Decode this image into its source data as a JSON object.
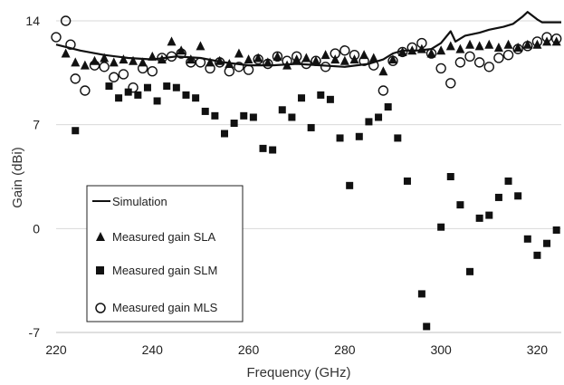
{
  "chart_data": {
    "type": "scatter",
    "title": "",
    "xlabel": "Frequency (GHz)",
    "ylabel": "Gain (dBi)",
    "xlim": [
      220,
      325
    ],
    "ylim": [
      -7,
      14
    ],
    "x_ticks": [
      220,
      240,
      260,
      280,
      300,
      320
    ],
    "y_ticks": [
      -7,
      0,
      7,
      14
    ],
    "grid": "horizontal",
    "legend_position": "bottom-left",
    "series": [
      {
        "name": "Simulation",
        "kind": "line",
        "color": "#111111",
        "x": [
          220,
          225,
          230,
          235,
          240,
          245,
          250,
          255,
          260,
          265,
          270,
          275,
          280,
          285,
          288,
          290,
          292,
          295,
          298,
          300,
          302,
          303,
          305,
          308,
          310,
          313,
          315,
          317,
          318,
          320,
          321,
          325
        ],
        "y": [
          12.4,
          12.0,
          11.7,
          11.5,
          11.4,
          11.6,
          11.5,
          11.2,
          11.0,
          11.0,
          11.1,
          11.0,
          10.9,
          11.1,
          11.4,
          11.8,
          12.0,
          12.0,
          12.1,
          12.5,
          13.3,
          12.6,
          13.0,
          13.2,
          13.4,
          13.6,
          13.8,
          14.3,
          14.6,
          14.1,
          13.9,
          13.9
        ]
      },
      {
        "name": "Measured gain SLA",
        "kind": "triangle",
        "color": "#111111",
        "x": [
          222,
          224,
          226,
          228,
          230,
          232,
          234,
          236,
          238,
          240,
          242,
          244,
          246,
          248,
          250,
          252,
          254,
          256,
          258,
          260,
          262,
          264,
          266,
          268,
          270,
          272,
          274,
          276,
          278,
          280,
          282,
          284,
          286,
          288,
          290,
          292,
          294,
          296,
          298,
          300,
          302,
          304,
          306,
          308,
          310,
          312,
          314,
          316,
          318,
          320,
          322,
          324
        ],
        "y": [
          11.8,
          11.2,
          11.0,
          11.3,
          11.5,
          11.2,
          11.4,
          11.3,
          11.2,
          11.6,
          11.4,
          12.6,
          12.0,
          11.4,
          12.3,
          11.2,
          11.3,
          11.1,
          11.8,
          11.4,
          11.5,
          11.2,
          11.6,
          11.0,
          11.4,
          11.5,
          11.3,
          11.7,
          11.4,
          11.3,
          11.4,
          11.7,
          11.5,
          10.6,
          11.4,
          11.9,
          12.0,
          12.1,
          11.8,
          12.0,
          12.3,
          12.1,
          12.4,
          12.3,
          12.4,
          12.2,
          12.4,
          12.2,
          12.4,
          12.4,
          12.6,
          12.6
        ]
      },
      {
        "name": "Measured gain SLM",
        "kind": "square",
        "color": "#111111",
        "x": [
          224,
          231,
          233,
          235,
          237,
          239,
          241,
          243,
          245,
          247,
          249,
          251,
          253,
          255,
          257,
          259,
          261,
          263,
          265,
          267,
          269,
          271,
          273,
          275,
          277,
          279,
          281,
          283,
          285,
          287,
          289,
          291,
          293,
          296,
          297,
          300,
          302,
          304,
          306,
          308,
          310,
          312,
          314,
          316,
          318,
          320,
          322,
          324
        ],
        "y": [
          6.6,
          9.6,
          8.8,
          9.2,
          9.0,
          9.5,
          8.6,
          9.6,
          9.5,
          9.0,
          8.8,
          7.9,
          7.6,
          6.4,
          7.1,
          7.6,
          7.5,
          5.4,
          5.3,
          8.0,
          7.5,
          8.8,
          6.8,
          9.0,
          8.7,
          6.1,
          2.9,
          6.2,
          7.2,
          7.5,
          8.2,
          6.1,
          3.2,
          -4.4,
          -6.6,
          0.1,
          3.5,
          1.6,
          -2.9,
          0.7,
          0.9,
          2.1,
          3.2,
          2.2,
          -0.7,
          -1.8,
          -1.0,
          -0.1
        ]
      },
      {
        "name": "Measured gain MLS",
        "kind": "circle",
        "color": "#111111",
        "x": [
          220,
          222,
          223,
          224,
          226,
          228,
          230,
          232,
          234,
          236,
          238,
          240,
          242,
          244,
          246,
          248,
          250,
          252,
          254,
          256,
          258,
          260,
          262,
          264,
          266,
          268,
          270,
          272,
          274,
          276,
          278,
          280,
          282,
          284,
          286,
          288,
          290,
          292,
          294,
          296,
          298,
          300,
          302,
          304,
          306,
          308,
          310,
          312,
          314,
          316,
          318,
          320,
          322,
          324
        ],
        "y": [
          12.9,
          14.0,
          12.4,
          10.1,
          9.3,
          11.0,
          10.9,
          10.2,
          10.4,
          9.5,
          10.8,
          10.6,
          11.5,
          11.6,
          11.8,
          11.2,
          11.2,
          10.8,
          11.2,
          10.6,
          10.9,
          10.7,
          11.4,
          11.1,
          11.6,
          11.3,
          11.6,
          11.1,
          11.3,
          10.9,
          11.8,
          12.0,
          11.7,
          11.3,
          11.0,
          9.3,
          11.3,
          11.9,
          12.2,
          12.5,
          11.8,
          10.8,
          9.8,
          11.2,
          11.6,
          11.2,
          10.9,
          11.5,
          11.7,
          12.1,
          12.3,
          12.6,
          12.9,
          12.8
        ]
      }
    ]
  }
}
